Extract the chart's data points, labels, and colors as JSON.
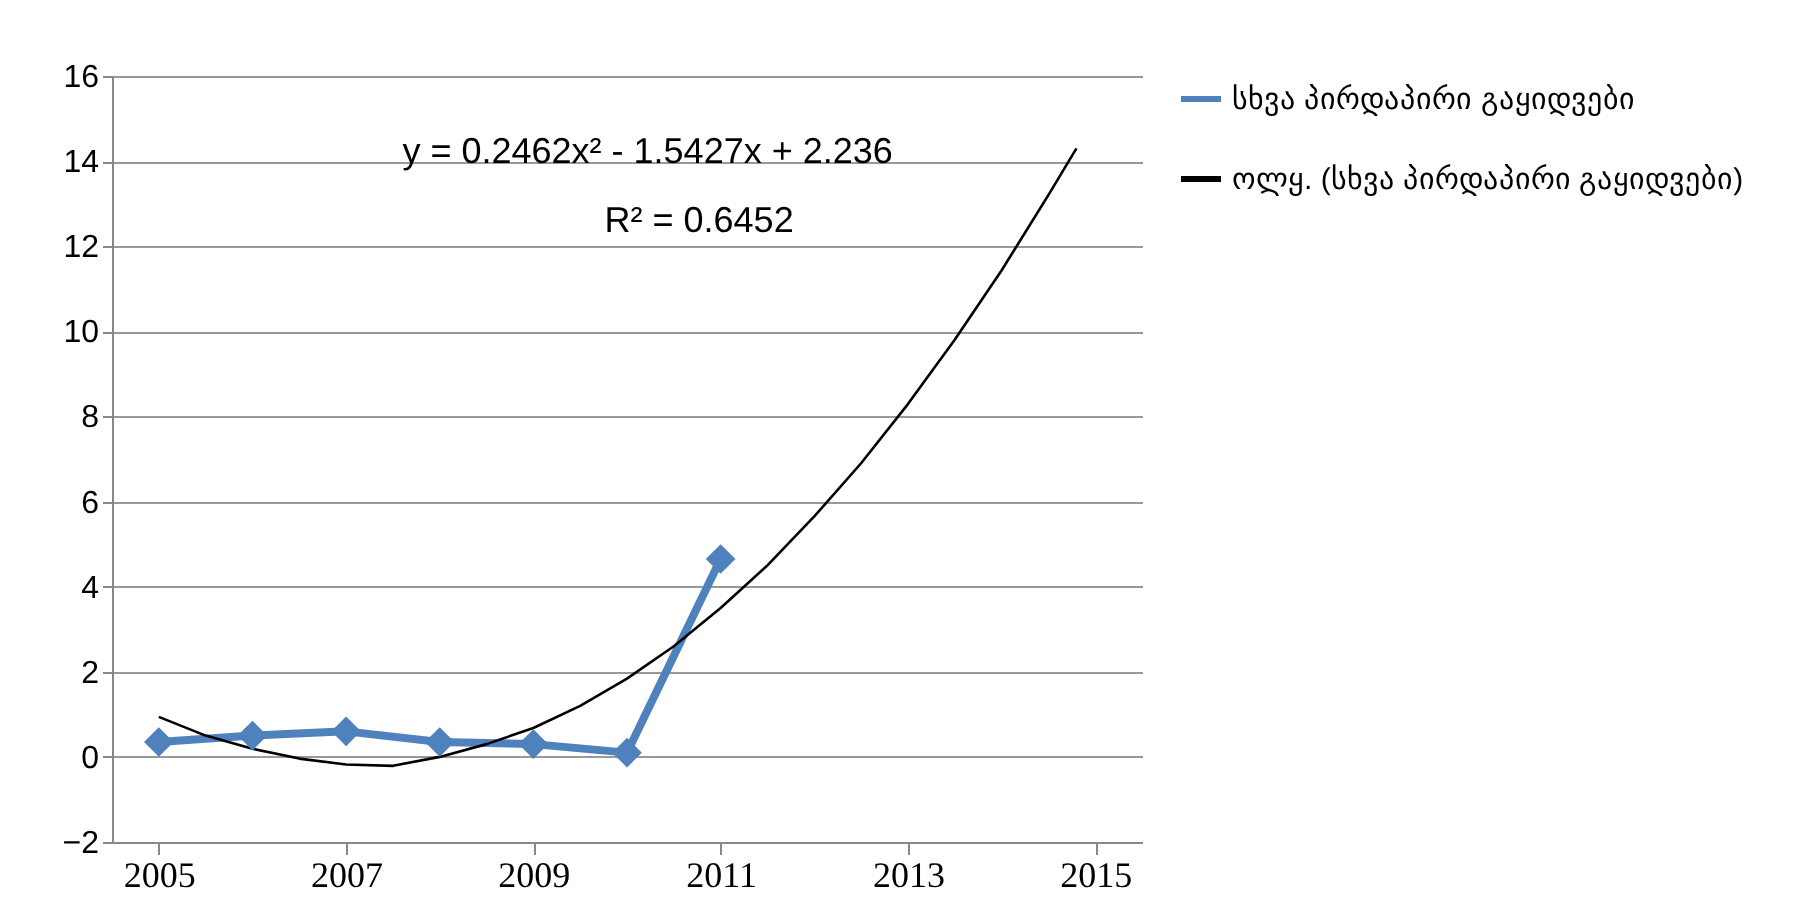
{
  "chart_data": {
    "type": "line",
    "xlim": [
      2004.5,
      2015.5
    ],
    "xticks": [
      2005,
      2007,
      2009,
      2011,
      2013,
      2015
    ],
    "ylim": [
      -2,
      16
    ],
    "yticks": [
      -2,
      0,
      2,
      4,
      6,
      8,
      10,
      12,
      14,
      16
    ],
    "grid": "y",
    "legend": "right",
    "annotations": [
      "y = 0.2462x² - 1.5427x + 2.236",
      "R² = 0.6452"
    ],
    "series": [
      {
        "name": "სხვა პირდაპირი გაყიდვები",
        "color": "#4f81bd",
        "marker": "diamond",
        "x": [
          2005,
          2006,
          2007,
          2008,
          2009,
          2010,
          2011
        ],
        "values": [
          0.35,
          0.5,
          0.6,
          0.35,
          0.3,
          0.1,
          4.65
        ]
      },
      {
        "name": "ოლყ. (სხვა პირდაპირი გაყიდვები)",
        "color": "#000000",
        "marker": "none",
        "x": [
          2005,
          2005.5,
          2006,
          2006.5,
          2007,
          2007.5,
          2008,
          2008.5,
          2009,
          2009.5,
          2010,
          2010.5,
          2011,
          2011.5,
          2012,
          2012.5,
          2013,
          2013.5,
          2014,
          2014.5,
          2014.8
        ],
        "values": [
          0.94,
          0.5,
          0.19,
          -0.04,
          -0.18,
          -0.21,
          0.0,
          0.3,
          0.68,
          1.2,
          1.84,
          2.6,
          3.5,
          4.5,
          5.65,
          6.9,
          8.29,
          9.8,
          11.43,
          13.2,
          14.3
        ]
      }
    ]
  }
}
